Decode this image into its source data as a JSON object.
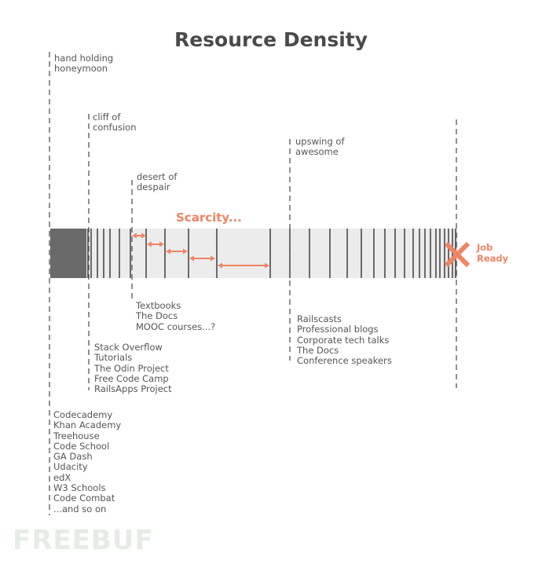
{
  "title": "Resource Density",
  "phases": {
    "hand_holding": [
      "hand holding",
      "honeymoon"
    ],
    "cliff": [
      "cliff of",
      "confusion"
    ],
    "desert": [
      "desert of",
      "despair"
    ],
    "upswing": [
      "upswing of",
      "awesome"
    ]
  },
  "resources": {
    "beginner": [
      "Codecademy",
      "Khan Academy",
      "Treehouse",
      "Code School",
      "GA Dash",
      "Udacity",
      "edX",
      "W3 Schools",
      "Code Combat",
      "...and so on"
    ],
    "cliff": [
      "Stack Overflow",
      "Tutorials",
      "The Odin Project",
      "Free Code Camp",
      "RailsApps Project"
    ],
    "desert": [
      "Textbooks",
      "The Docs",
      "MOOC courses...?"
    ],
    "upswing": [
      "Railscasts",
      "Professional blogs",
      "Corporate tech talks",
      "The Docs",
      "Conference speakers"
    ]
  },
  "scarcity_label": "Scarcity...",
  "job_ready": [
    "Job",
    "Ready"
  ],
  "watermark": "FREEBUF",
  "colors": {
    "accent": "#f08465",
    "band": "#ececec",
    "line": "#555555",
    "title": "#4a4a4a"
  }
}
